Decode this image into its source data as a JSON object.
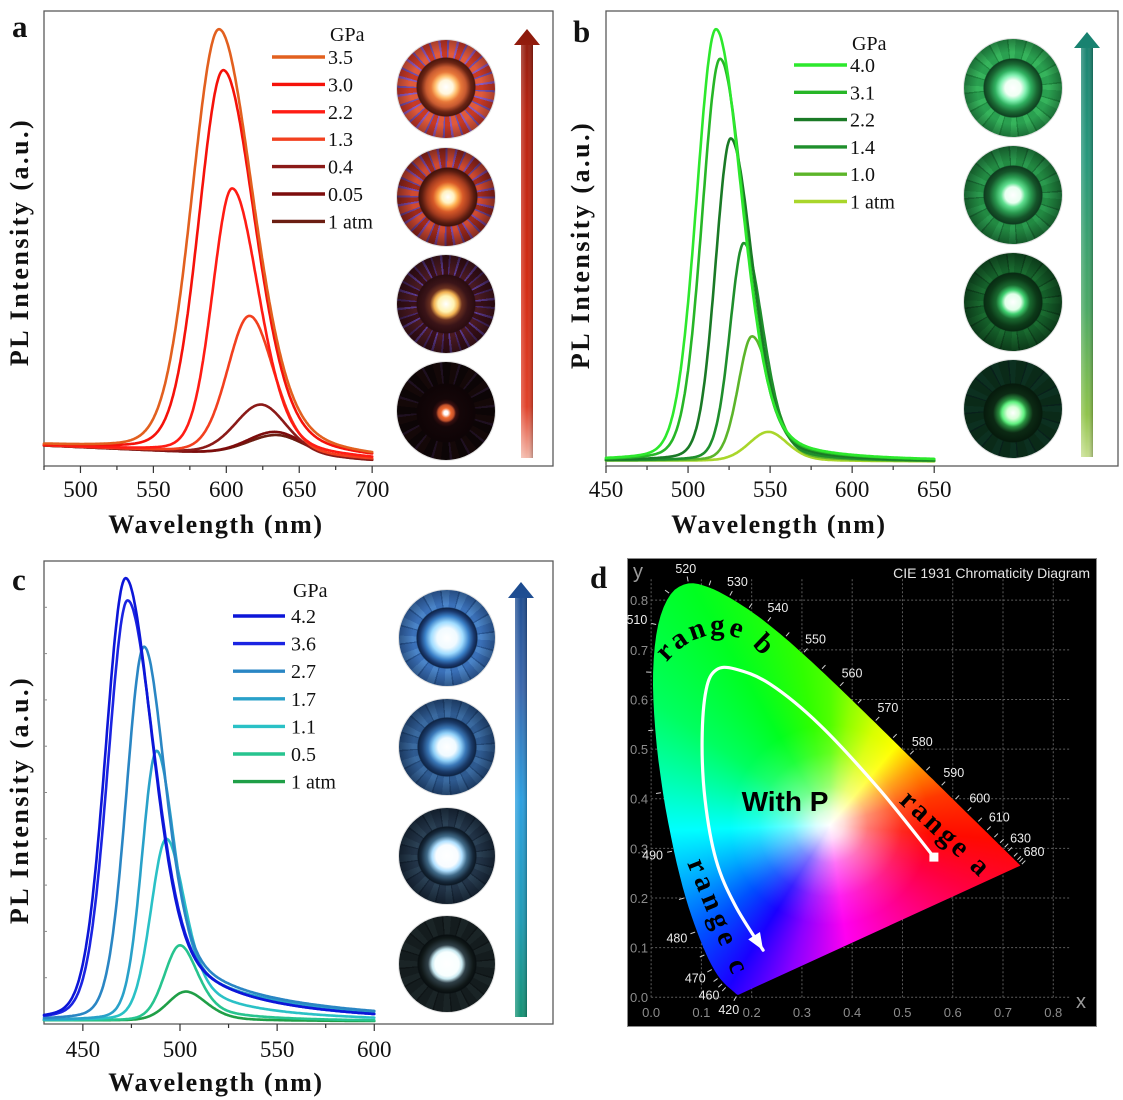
{
  "figure": {
    "panel_labels": [
      "a",
      "b",
      "c",
      "d"
    ]
  },
  "chart_data": [
    {
      "panel": "a",
      "type": "line",
      "title": "",
      "xlabel": "Wavelength (nm)",
      "ylabel": "PL Intensity (a.u.)",
      "xlim": [
        475,
        824
      ],
      "ylim": [
        0,
        1
      ],
      "x_data_range": [
        475,
        700
      ],
      "xticks": [
        500,
        550,
        600,
        650,
        700
      ],
      "xtick_labels": [
        "500",
        "550",
        "600",
        "650",
        "700"
      ],
      "xminor_step": 25,
      "yticks": [],
      "grid": false,
      "legend": {
        "title": "GPa",
        "position": "top-right"
      },
      "model": "asymmetric pseudo-Voigt emission peak on linear baseline",
      "baseline": {
        "start": [
          475,
          0.045
        ],
        "end": [
          700,
          0.012
        ]
      },
      "lorentz_fraction": [
        0.15,
        0.3
      ],
      "series": [
        {
          "name": "3.5",
          "color": "#e2601f",
          "peak_nm": 595,
          "peak_intensity": 0.96,
          "hwhm_left_nm": 22,
          "hwhm_right_nm": 28
        },
        {
          "name": "3.0",
          "color": "#f5120a",
          "peak_nm": 598,
          "peak_intensity": 0.87,
          "hwhm_left_nm": 20,
          "hwhm_right_nm": 26
        },
        {
          "name": "2.2",
          "color": "#ff1c14",
          "peak_nm": 604,
          "peak_intensity": 0.61,
          "hwhm_left_nm": 16,
          "hwhm_right_nm": 22
        },
        {
          "name": "1.3",
          "color": "#f2401f",
          "peak_nm": 616,
          "peak_intensity": 0.33,
          "hwhm_left_nm": 18,
          "hwhm_right_nm": 20
        },
        {
          "name": "0.4",
          "color": "#8b1a18",
          "peak_nm": 624,
          "peak_intensity": 0.135,
          "hwhm_left_nm": 21,
          "hwhm_right_nm": 21
        },
        {
          "name": "0.05",
          "color": "#7d0c0c",
          "peak_nm": 634,
          "peak_intensity": 0.075,
          "hwhm_left_nm": 23,
          "hwhm_right_nm": 23
        },
        {
          "name": "1 atm",
          "color": "#6b1e12",
          "peak_nm": 635,
          "peak_intensity": 0.068,
          "hwhm_left_nm": 24,
          "hwhm_right_nm": 23
        }
      ],
      "inset": {
        "photo_count": 4,
        "arrow_gradient": [
          "#8a1a0c",
          "#b82210",
          "#d42a12",
          "#e04028",
          "#f3b7a8"
        ]
      }
    },
    {
      "panel": "b",
      "type": "line",
      "title": "",
      "xlabel": "Wavelength (nm)",
      "ylabel": "PL Intensity (a.u.)",
      "xlim": [
        450,
        762
      ],
      "ylim": [
        0,
        1
      ],
      "x_data_range": [
        450,
        650
      ],
      "xticks": [
        450,
        500,
        550,
        600,
        650
      ],
      "xtick_labels": [
        "450",
        "500",
        "550",
        "600",
        "650"
      ],
      "xminor_step": 25,
      "yticks": [],
      "grid": false,
      "legend": {
        "title": "GPa",
        "position": "top-right"
      },
      "model": "asymmetric pseudo-Voigt emission peak on linear baseline",
      "baseline": {
        "start": [
          450,
          0.012
        ],
        "end": [
          650,
          0.01
        ]
      },
      "lorentz_fraction": [
        0.15,
        0.3
      ],
      "series": [
        {
          "name": "4.0",
          "color": "#2de82d",
          "peak_nm": 517,
          "peak_intensity": 0.96,
          "hwhm_left_nm": 14,
          "hwhm_right_nm": 19
        },
        {
          "name": "3.1",
          "color": "#27b627",
          "peak_nm": 519.5,
          "peak_intensity": 0.895,
          "hwhm_left_nm": 13,
          "hwhm_right_nm": 18
        },
        {
          "name": "2.2",
          "color": "#1a7a26",
          "peak_nm": 526,
          "peak_intensity": 0.72,
          "hwhm_left_nm": 11,
          "hwhm_right_nm": 16
        },
        {
          "name": "1.4",
          "color": "#1f8f2c",
          "peak_nm": 534,
          "peak_intensity": 0.49,
          "hwhm_left_nm": 10,
          "hwhm_right_nm": 14
        },
        {
          "name": "1.0",
          "color": "#5cb52a",
          "peak_nm": 539,
          "peak_intensity": 0.285,
          "hwhm_left_nm": 10,
          "hwhm_right_nm": 14
        },
        {
          "name": "1 atm",
          "color": "#a9d62b",
          "peak_nm": 549,
          "peak_intensity": 0.075,
          "hwhm_left_nm": 14,
          "hwhm_right_nm": 14
        }
      ],
      "inset": {
        "photo_count": 4,
        "arrow_gradient": [
          "#17806f",
          "#25977a",
          "#4aa864",
          "#8fc34a",
          "#c6de8e"
        ]
      }
    },
    {
      "panel": "c",
      "type": "line",
      "title": "",
      "xlabel": "Wavelength (nm)",
      "ylabel": "PL Intensity (a.u.)",
      "xlim": [
        430,
        692
      ],
      "ylim": [
        0,
        1
      ],
      "x_data_range": [
        430,
        600
      ],
      "xticks": [
        450,
        500,
        550,
        600
      ],
      "xtick_labels": [
        "450",
        "500",
        "550",
        "600"
      ],
      "xminor_step": 25,
      "yticks": [
        0.1,
        0.2,
        0.3,
        0.4,
        0.5,
        0.6,
        0.7,
        0.8,
        0.9
      ],
      "grid": false,
      "legend": {
        "title": "GPa",
        "position": "top-right"
      },
      "model": "asymmetric pseudo-Voigt emission peak on linear baseline with red-side tail",
      "baseline": {
        "start": [
          430,
          0.008
        ],
        "end": [
          600,
          0.006
        ]
      },
      "lorentz_fraction": [
        0.15,
        0.4
      ],
      "series": [
        {
          "name": "4.2",
          "color": "#0c16d8",
          "peak_nm": 472,
          "peak_intensity": 0.963,
          "hwhm_left_nm": 12.3,
          "hwhm_right_nm": 16,
          "tail": {
            "amp": 0.1,
            "decay_nm": 55
          }
        },
        {
          "name": "3.6",
          "color": "#1b24e2",
          "peak_nm": 473,
          "peak_intensity": 0.915,
          "hwhm_left_nm": 12,
          "hwhm_right_nm": 16,
          "tail": {
            "amp": 0.1,
            "decay_nm": 55
          }
        },
        {
          "name": "2.7",
          "color": "#2a86c4",
          "peak_nm": 481.5,
          "peak_intensity": 0.815,
          "hwhm_left_nm": 10.8,
          "hwhm_right_nm": 13,
          "tail": {
            "amp": 0.1,
            "decay_nm": 70
          }
        },
        {
          "name": "1.7",
          "color": "#29a1c9",
          "peak_nm": 488,
          "peak_intensity": 0.59,
          "hwhm_left_nm": 9,
          "hwhm_right_nm": 11,
          "tail": {
            "amp": 0.09,
            "decay_nm": 70
          }
        },
        {
          "name": "1.1",
          "color": "#2ac1c6",
          "peak_nm": 493,
          "peak_intensity": 0.4,
          "hwhm_left_nm": 9.5,
          "hwhm_right_nm": 11.5,
          "tail": {
            "amp": 0.05,
            "decay_nm": 50
          }
        },
        {
          "name": "0.5",
          "color": "#27c48f",
          "peak_nm": 500,
          "peak_intensity": 0.17,
          "hwhm_left_nm": 9.5,
          "hwhm_right_nm": 11,
          "tail": {
            "amp": 0.015,
            "decay_nm": 40
          }
        },
        {
          "name": "1 atm",
          "color": "#1f9f47",
          "peak_nm": 503,
          "peak_intensity": 0.07,
          "hwhm_left_nm": 11,
          "hwhm_right_nm": 13
        }
      ],
      "inset": {
        "photo_count": 4,
        "arrow_gradient": [
          "#1b4a8e",
          "#3a68ae",
          "#2b9fe0",
          "#1f9bb4",
          "#159273"
        ]
      }
    },
    {
      "panel": "d",
      "type": "scatter",
      "kind": "CIE 1931 chromaticity diagram",
      "title": "CIE 1931 Chromaticity Diagram",
      "xlabel": "x",
      "ylabel": "y",
      "xlim": [
        -0.048,
        0.887
      ],
      "ylim": [
        -0.06,
        0.885
      ],
      "xticks": [
        0.0,
        0.1,
        0.2,
        0.3,
        0.4,
        0.5,
        0.6,
        0.7,
        0.8
      ],
      "xtick_labels": [
        "0.0",
        "0.1",
        "0.2",
        "0.3",
        "0.4",
        "0.5",
        "0.6",
        "0.7",
        "0.8"
      ],
      "yticks": [
        0.0,
        0.1,
        0.2,
        0.3,
        0.4,
        0.5,
        0.6,
        0.7,
        0.8
      ],
      "ytick_labels": [
        "0.0",
        "0.1",
        "0.2",
        "0.3",
        "0.4",
        "0.5",
        "0.6",
        "0.7",
        "0.8"
      ],
      "grid": true,
      "background": "#000000",
      "spectral_locus": [
        [
          380,
          0.1741,
          0.005
        ],
        [
          390,
          0.1738,
          0.0049
        ],
        [
          400,
          0.1733,
          0.0048
        ],
        [
          410,
          0.1726,
          0.0048
        ],
        [
          420,
          0.1714,
          0.0051
        ],
        [
          430,
          0.1689,
          0.0069
        ],
        [
          440,
          0.1644,
          0.0109
        ],
        [
          445,
          0.1611,
          0.0138
        ],
        [
          450,
          0.1566,
          0.0177
        ],
        [
          455,
          0.151,
          0.0227
        ],
        [
          460,
          0.144,
          0.0297
        ],
        [
          465,
          0.1355,
          0.0399
        ],
        [
          470,
          0.1241,
          0.0578
        ],
        [
          475,
          0.1096,
          0.0868
        ],
        [
          480,
          0.0913,
          0.1327
        ],
        [
          485,
          0.0687,
          0.2007
        ],
        [
          490,
          0.0454,
          0.295
        ],
        [
          495,
          0.0235,
          0.4127
        ],
        [
          500,
          0.0082,
          0.5384
        ],
        [
          505,
          0.0039,
          0.6548
        ],
        [
          510,
          0.0139,
          0.7502
        ],
        [
          515,
          0.0389,
          0.812
        ],
        [
          520,
          0.0743,
          0.8338
        ],
        [
          525,
          0.1142,
          0.8262
        ],
        [
          530,
          0.1547,
          0.8059
        ],
        [
          535,
          0.1929,
          0.7816
        ],
        [
          540,
          0.2296,
          0.7543
        ],
        [
          545,
          0.2658,
          0.7243
        ],
        [
          550,
          0.3016,
          0.6923
        ],
        [
          555,
          0.3373,
          0.6589
        ],
        [
          560,
          0.3731,
          0.6245
        ],
        [
          565,
          0.4087,
          0.5896
        ],
        [
          570,
          0.4441,
          0.5547
        ],
        [
          575,
          0.4788,
          0.5202
        ],
        [
          580,
          0.5125,
          0.4866
        ],
        [
          585,
          0.5448,
          0.4544
        ],
        [
          590,
          0.5752,
          0.4242
        ],
        [
          595,
          0.6029,
          0.3965
        ],
        [
          600,
          0.627,
          0.3725
        ],
        [
          605,
          0.6482,
          0.3514
        ],
        [
          610,
          0.6658,
          0.334
        ],
        [
          615,
          0.6801,
          0.3197
        ],
        [
          620,
          0.6915,
          0.3083
        ],
        [
          625,
          0.7006,
          0.2993
        ],
        [
          630,
          0.7079,
          0.292
        ],
        [
          640,
          0.719,
          0.2809
        ],
        [
          650,
          0.726,
          0.274
        ],
        [
          660,
          0.73,
          0.27
        ],
        [
          680,
          0.7347,
          0.2653
        ]
      ],
      "wavelength_labels": [
        420,
        460,
        470,
        480,
        490,
        510,
        520,
        530,
        540,
        550,
        560,
        570,
        580,
        590,
        600,
        610,
        630,
        680
      ],
      "trajectory": {
        "points": [
          [
            0.5626,
            0.2823
          ],
          [
            0.4553,
            0.4173
          ],
          [
            0.336,
            0.5484
          ],
          [
            0.2366,
            0.631
          ],
          [
            0.167,
            0.6613
          ],
          [
            0.1292,
            0.6593
          ],
          [
            0.1093,
            0.619
          ],
          [
            0.1014,
            0.5181
          ],
          [
            0.1074,
            0.3972
          ],
          [
            0.1292,
            0.2762
          ],
          [
            0.167,
            0.1855
          ],
          [
            0.2227,
            0.0948
          ]
        ],
        "start_marker": "square",
        "end_marker": "arrowhead",
        "color": "#ffffff"
      },
      "annotations": [
        {
          "text": "range a"
        },
        {
          "text": "range b"
        },
        {
          "text": "range c"
        },
        {
          "text": "With P"
        }
      ]
    }
  ]
}
